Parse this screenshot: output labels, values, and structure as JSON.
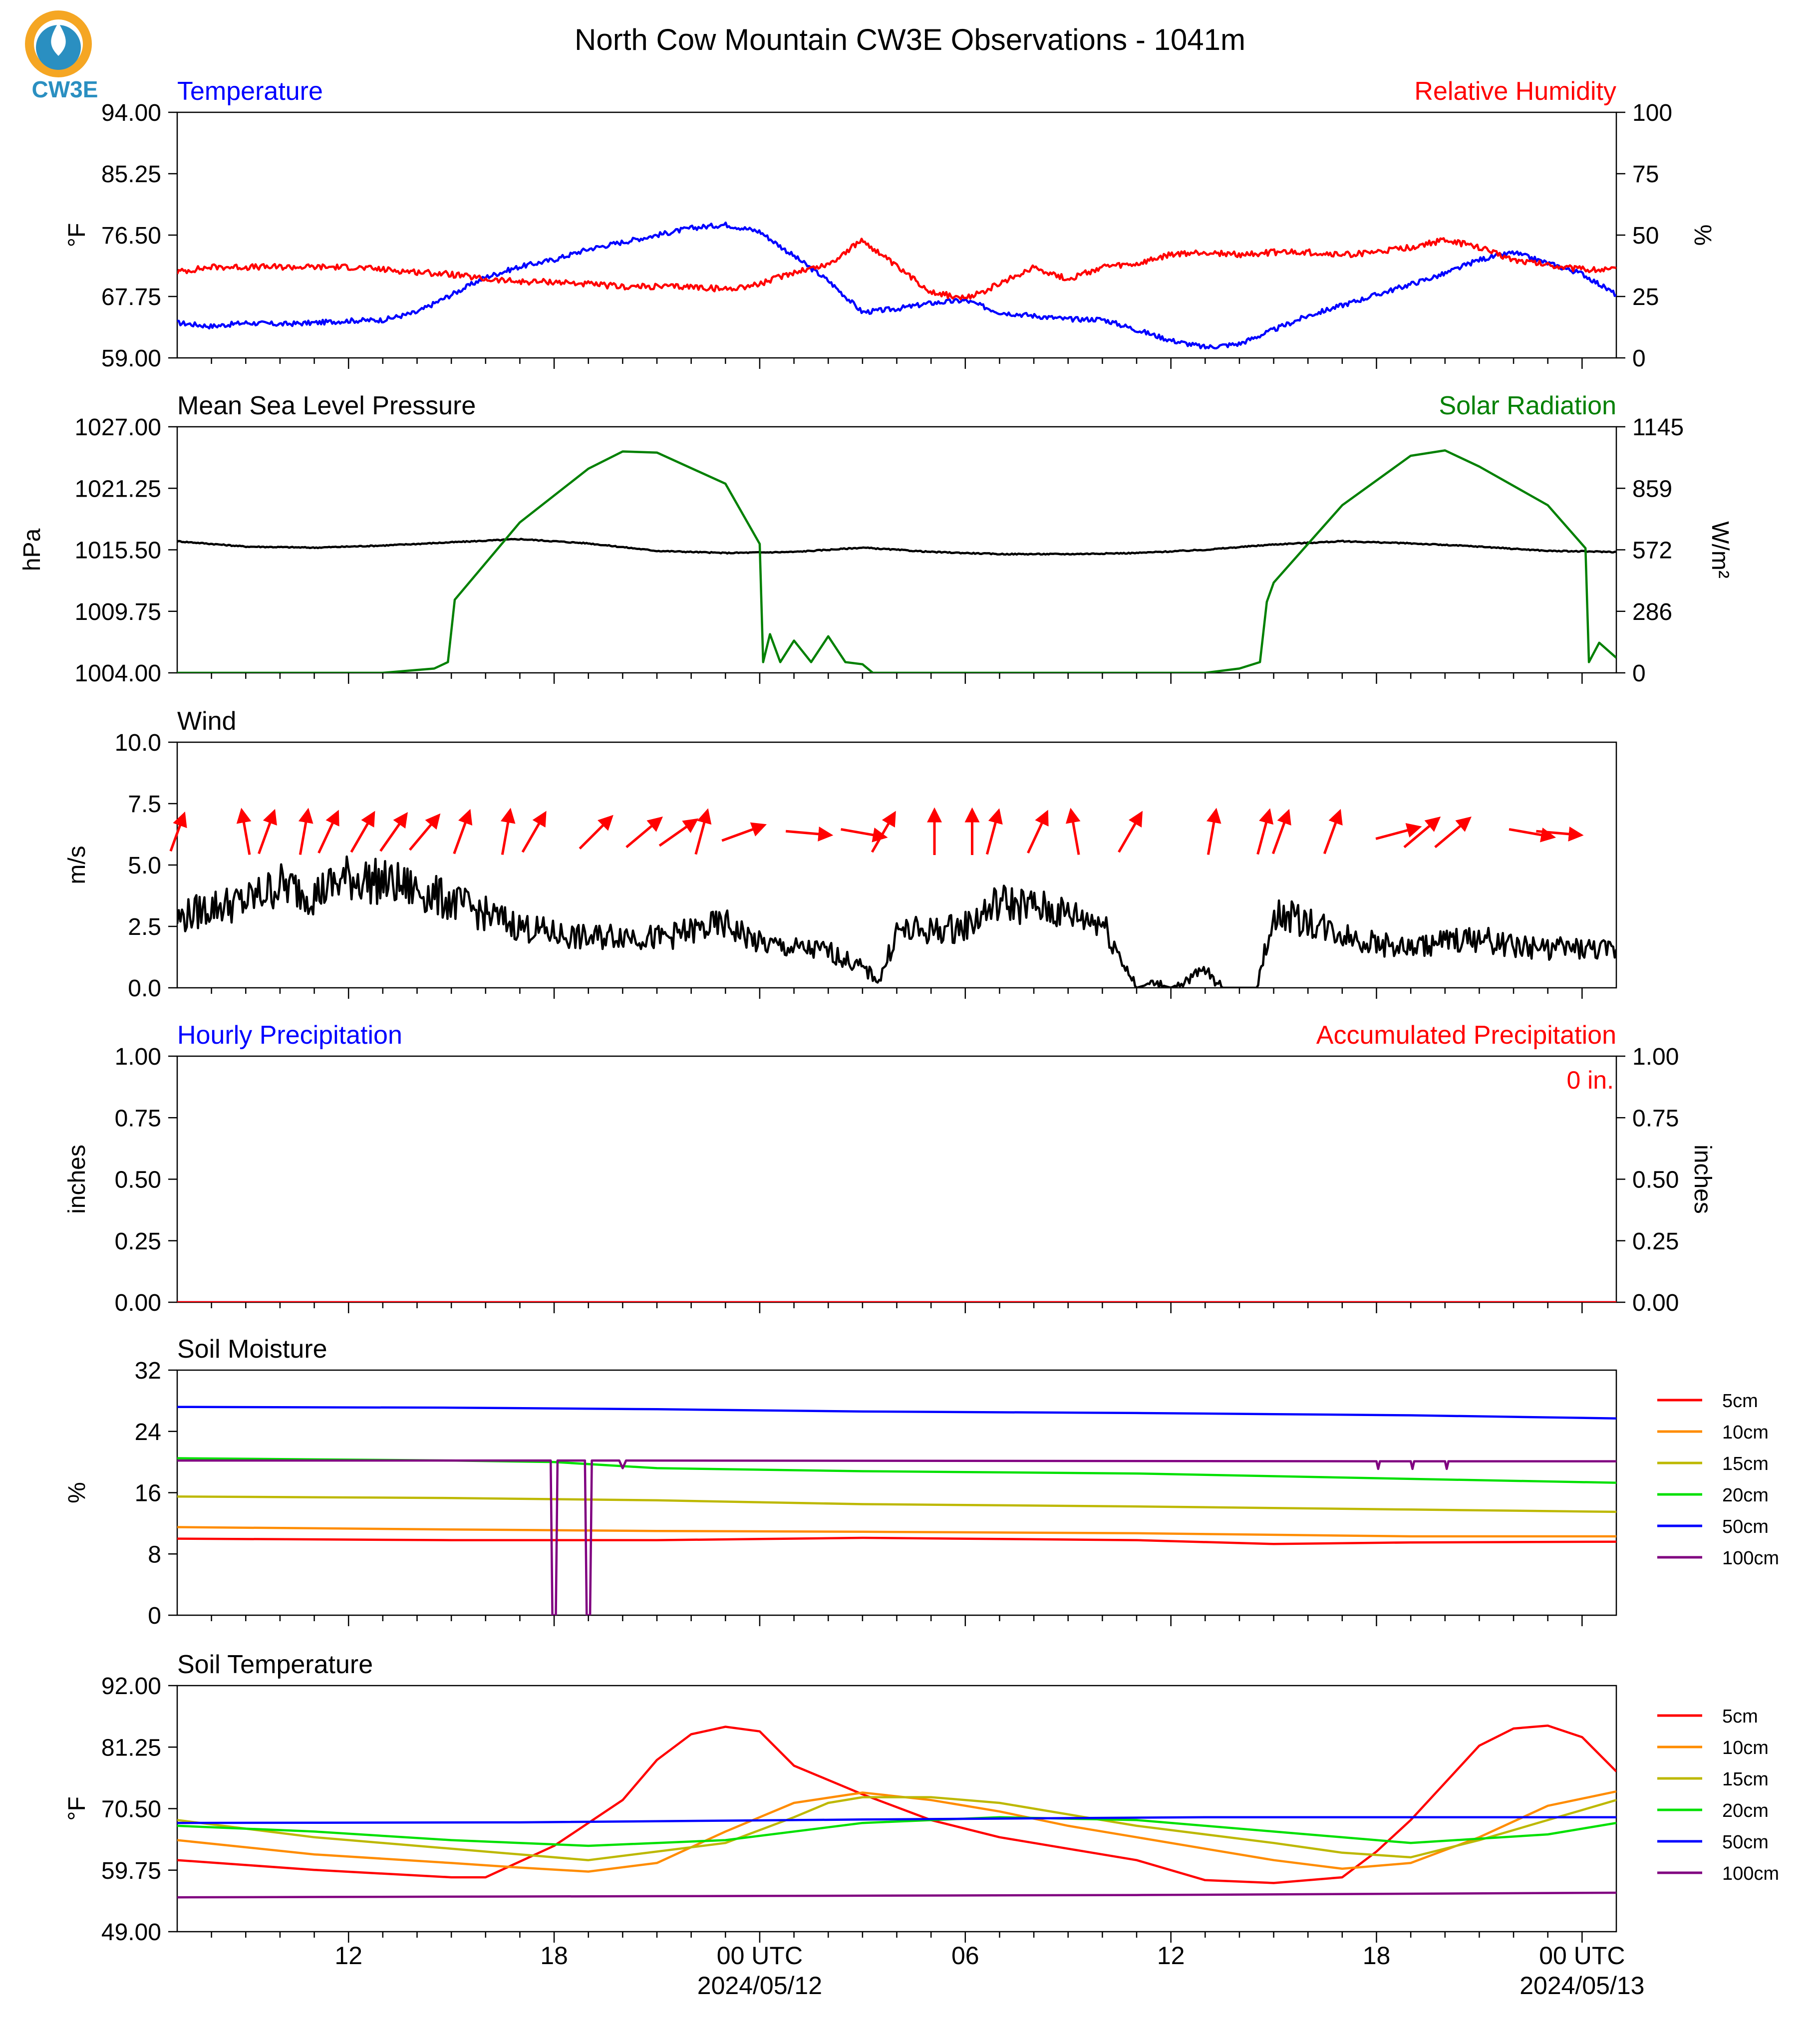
{
  "title": "North Cow Mountain CW3E Observations - 1041m",
  "logo": {
    "text": "CW3E",
    "colors": {
      "ring": "#f5a623",
      "drop": "#2a8fc1",
      "text": "#2a8fc1"
    }
  },
  "chart_data": [
    {
      "id": "temp_rh",
      "type": "line",
      "left_title": "Temperature",
      "right_title": "Relative Humidity",
      "left_title_color": "#0000ff",
      "right_title_color": "#ff0000",
      "ylabel_left": "°F",
      "ylabel_right": "%",
      "ylim_left": [
        59,
        94
      ],
      "ylim_right": [
        0,
        100
      ],
      "yticks_left": [
        "59.00",
        "67.75",
        "76.50",
        "85.25",
        "94.00"
      ],
      "yticks_right": [
        "0",
        "25",
        "50",
        "75",
        "100"
      ],
      "series": [
        {
          "label": "Temperature",
          "axis": "left",
          "color": "#0000ff",
          "x": [
            0,
            1,
            2,
            3,
            4,
            5,
            6,
            7,
            8,
            9,
            10,
            11,
            12,
            13,
            14,
            15,
            16,
            17,
            18,
            19,
            20,
            21,
            22,
            23,
            24,
            25,
            26,
            27,
            28,
            29,
            30,
            31,
            32,
            33,
            34,
            35,
            36,
            37,
            38,
            39,
            40,
            41,
            42
          ],
          "y": [
            64.0,
            63.5,
            64.0,
            63.8,
            64.0,
            64.3,
            64.4,
            65.5,
            68.0,
            70.5,
            72.0,
            73.0,
            74.5,
            75.5,
            76.5,
            77.5,
            78.0,
            77.0,
            73.5,
            70.0,
            65.5,
            66.0,
            66.8,
            67.2,
            65.5,
            65.0,
            64.5,
            64.5,
            63.0,
            61.5,
            60.5,
            61.0,
            63.0,
            65.0,
            66.5,
            68.0,
            69.5,
            71.0,
            73.0,
            74.0,
            72.5,
            71.0,
            68.0
          ]
        },
        {
          "label": "Relative Humidity",
          "axis": "right",
          "color": "#ff0000",
          "x": [
            0,
            1,
            2,
            3,
            4,
            5,
            6,
            7,
            8,
            9,
            10,
            11,
            12,
            13,
            14,
            15,
            16,
            17,
            18,
            19,
            20,
            21,
            22,
            23,
            24,
            25,
            26,
            27,
            28,
            29,
            30,
            31,
            32,
            33,
            34,
            35,
            36,
            37,
            38,
            39,
            40,
            41,
            42
          ],
          "y": [
            35,
            37,
            37,
            37,
            37,
            37,
            36,
            35,
            34,
            32,
            31,
            31,
            30,
            29,
            29,
            29,
            28,
            30,
            35,
            38,
            48,
            37,
            27,
            24,
            30,
            37,
            32,
            37,
            38,
            42,
            43,
            42,
            43,
            43,
            42,
            43,
            45,
            48,
            45,
            40,
            38,
            36,
            36
          ]
        }
      ]
    },
    {
      "id": "pressure_solar",
      "type": "line",
      "left_title": "Mean Sea Level Pressure",
      "right_title": "Solar Radiation",
      "left_title_color": "#000000",
      "right_title_color": "#008000",
      "ylabel_left": "hPa",
      "ylabel_right": "W/m²",
      "ylim_left": [
        1004,
        1027
      ],
      "ylim_right": [
        0,
        1145
      ],
      "yticks_left": [
        "1004.00",
        "1009.75",
        "1015.50",
        "1021.25",
        "1027.00"
      ],
      "yticks_right": [
        "0",
        "286",
        "572",
        "859",
        "1145"
      ],
      "series": [
        {
          "label": "Mean Sea Level Pressure",
          "axis": "left",
          "color": "#000000",
          "x": [
            0,
            2,
            4,
            6,
            8,
            10,
            12,
            14,
            16,
            18,
            20,
            22,
            24,
            26,
            28,
            30,
            32,
            34,
            36,
            38,
            40,
            42
          ],
          "y": [
            1016.3,
            1015.8,
            1015.7,
            1015.9,
            1016.2,
            1016.5,
            1016.1,
            1015.4,
            1015.2,
            1015.3,
            1015.7,
            1015.3,
            1015.1,
            1015.1,
            1015.2,
            1015.5,
            1016.0,
            1016.3,
            1016.1,
            1015.8,
            1015.4,
            1015.3
          ]
        },
        {
          "label": "Solar Radiation",
          "axis": "right",
          "color": "#008000",
          "x": [
            0,
            6,
            7.5,
            7.9,
            8.1,
            10,
            12,
            13,
            14,
            16,
            17,
            17.1,
            17.3,
            17.6,
            18,
            18.5,
            19,
            19.5,
            20,
            20.3,
            21,
            24,
            30,
            31,
            31.6,
            31.8,
            32,
            34,
            36,
            37,
            38,
            40,
            41.1,
            41.2,
            41.5,
            42
          ],
          "y": [
            0,
            0,
            20,
            50,
            340,
            700,
            950,
            1030,
            1025,
            880,
            600,
            50,
            180,
            50,
            150,
            50,
            170,
            50,
            40,
            0,
            0,
            0,
            0,
            20,
            50,
            330,
            420,
            780,
            1010,
            1035,
            960,
            780,
            580,
            50,
            140,
            70
          ]
        }
      ]
    },
    {
      "id": "wind",
      "type": "line",
      "left_title": "Wind",
      "right_title": "",
      "left_title_color": "#000000",
      "ylabel_left": "m/s",
      "ylim_left": [
        0,
        10
      ],
      "yticks_left": [
        "0.0",
        "2.5",
        "5.0",
        "7.5",
        "10.0"
      ],
      "series": [
        {
          "label": "Wind speed",
          "axis": "left",
          "color": "#000000",
          "x": [
            0,
            1,
            2,
            3,
            4,
            5,
            6,
            7,
            8,
            9,
            10,
            11,
            12,
            13,
            14,
            15,
            16,
            17,
            18,
            19,
            20,
            20.5,
            21,
            22,
            23,
            24,
            25,
            26,
            27,
            28,
            28.5,
            29,
            30,
            30.5,
            31,
            31.5,
            32,
            33,
            34,
            35,
            36,
            37,
            38,
            39,
            40,
            41,
            42
          ],
          "y": [
            2.8,
            3.3,
            3.5,
            4.2,
            3.8,
            4.5,
            4.3,
            4.0,
            3.5,
            3.0,
            2.5,
            2.2,
            2.0,
            2.2,
            2.0,
            2.3,
            2.6,
            1.8,
            1.6,
            1.5,
            0.8,
            0.3,
            2.3,
            2.3,
            2.5,
            3.5,
            3.3,
            3.0,
            2.7,
            0.0,
            0.2,
            0.0,
            0.7,
            0.0,
            0.0,
            0.0,
            3.0,
            2.7,
            2.2,
            1.8,
            1.6,
            1.9,
            2.0,
            1.7,
            1.6,
            1.6,
            1.5
          ]
        }
      ],
      "barbs": {
        "color": "#ff0000",
        "x": [
          0,
          2,
          2.6,
          3.7,
          4.4,
          5.4,
          6.3,
          7.2,
          8.3,
          9.6,
          10.4,
          12.2,
          13.6,
          14.6,
          15.3,
          16.5,
          18.4,
          20.0,
          20.6,
          22.1,
          23.2,
          23.8,
          25.1,
          26.2,
          27.8,
          30.2,
          31.7,
          32.2,
          33.7,
          35.6,
          36.3,
          37.2,
          39.5,
          40.3
        ],
        "dir": [
          200,
          170,
          200,
          190,
          205,
          210,
          215,
          220,
          200,
          190,
          210,
          225,
          230,
          235,
          195,
          250,
          275,
          280,
          210,
          180,
          180,
          195,
          205,
          170,
          210,
          190,
          195,
          200,
          200,
          255,
          230,
          230,
          280,
          275
        ],
        "len": [
          0.7,
          0.8,
          0.8,
          0.8,
          0.8,
          0.8,
          0.8,
          0.8,
          0.8,
          0.8,
          0.8,
          0.8,
          0.8,
          0.8,
          0.8,
          0.8,
          0.8,
          0.8,
          0.8,
          0.8,
          0.8,
          0.8,
          0.8,
          0.8,
          0.8,
          0.8,
          0.8,
          0.8,
          0.8,
          0.8,
          0.8,
          0.8,
          0.8,
          0.8
        ]
      }
    },
    {
      "id": "precip",
      "type": "line",
      "left_title": "Hourly Precipitation",
      "right_title": "Accumulated Precipitation",
      "left_title_color": "#0000ff",
      "right_title_color": "#ff0000",
      "ylabel_left": "inches",
      "ylabel_right": "inches",
      "ylim_left": [
        0,
        1
      ],
      "ylim_right": [
        0,
        1
      ],
      "yticks_left": [
        "0.00",
        "0.25",
        "0.50",
        "0.75",
        "1.00"
      ],
      "yticks_right": [
        "0.00",
        "0.25",
        "0.50",
        "0.75",
        "1.00"
      ],
      "annotation": "0 in.",
      "series": [
        {
          "label": "Hourly Precipitation",
          "axis": "left",
          "color": "#0000ff",
          "x": [
            0,
            42
          ],
          "y": [
            0,
            0
          ]
        },
        {
          "label": "Accumulated Precipitation",
          "axis": "right",
          "color": "#ff0000",
          "x": [
            0,
            42
          ],
          "y": [
            0,
            0
          ]
        }
      ]
    },
    {
      "id": "soil_moisture",
      "type": "line",
      "left_title": "Soil Moisture",
      "right_title": "",
      "left_title_color": "#000000",
      "ylabel_left": "%",
      "ylim_left": [
        0,
        32
      ],
      "yticks_left": [
        "0",
        "8",
        "16",
        "24",
        "32"
      ],
      "legend": "right",
      "series": [
        {
          "label": "5cm",
          "color": "#ff0000",
          "x": [
            0,
            8,
            14,
            20,
            28,
            32,
            36,
            42
          ],
          "y": [
            10.0,
            9.8,
            9.8,
            10.1,
            9.8,
            9.3,
            9.5,
            9.6
          ]
        },
        {
          "label": "10cm",
          "color": "#ff8c00",
          "x": [
            0,
            8,
            14,
            20,
            28,
            36,
            42
          ],
          "y": [
            11.5,
            11.2,
            11.0,
            10.9,
            10.7,
            10.3,
            10.3
          ]
        },
        {
          "label": "15cm",
          "color": "#bdb800",
          "x": [
            0,
            8,
            14,
            20,
            28,
            36,
            42
          ],
          "y": [
            15.5,
            15.3,
            15.0,
            14.5,
            14.2,
            13.8,
            13.5
          ]
        },
        {
          "label": "20cm",
          "color": "#00e000",
          "x": [
            0,
            8,
            11,
            14,
            20,
            28,
            36,
            42
          ],
          "y": [
            20.5,
            20.2,
            20.0,
            19.2,
            18.8,
            18.5,
            17.8,
            17.3
          ]
        },
        {
          "label": "50cm",
          "color": "#0000ff",
          "x": [
            0,
            8,
            14,
            20,
            28,
            36,
            42
          ],
          "y": [
            27.2,
            27.1,
            26.9,
            26.6,
            26.4,
            26.1,
            25.7
          ]
        },
        {
          "label": "100cm",
          "color": "#800080",
          "x": [
            0,
            10.9,
            10.95,
            11.05,
            11.1,
            11.9,
            11.95,
            12.05,
            12.1,
            12.9,
            13.0,
            13.1,
            35.0,
            35.05,
            35.1,
            36.0,
            36.05,
            36.1,
            37.0,
            37.05,
            37.1,
            42
          ],
          "y": [
            20.2,
            20.2,
            0,
            0,
            20.2,
            20.2,
            0,
            0,
            20.2,
            20.2,
            19.2,
            20.2,
            20.1,
            19.1,
            20.1,
            20.1,
            19.1,
            20.1,
            20.1,
            19.1,
            20.1,
            20.1
          ]
        }
      ]
    },
    {
      "id": "soil_temperature",
      "type": "line",
      "left_title": "Soil Temperature",
      "right_title": "",
      "left_title_color": "#000000",
      "ylabel_left": "°F",
      "ylim_left": [
        49,
        92
      ],
      "yticks_left": [
        "49.00",
        "59.75",
        "70.50",
        "81.25",
        "92.00"
      ],
      "legend": "right",
      "series": [
        {
          "label": "5cm",
          "color": "#ff0000",
          "x": [
            0,
            4,
            8,
            9,
            11,
            13,
            14,
            15,
            16,
            17,
            18,
            20,
            22,
            24,
            26,
            28,
            30,
            32,
            34,
            35,
            36,
            37,
            38,
            39,
            40,
            41,
            42
          ],
          "y": [
            61.5,
            59.8,
            58.5,
            58.5,
            64.0,
            72.0,
            79.0,
            83.5,
            84.8,
            84.0,
            78.0,
            73.0,
            68.5,
            65.5,
            63.5,
            61.5,
            58.0,
            57.5,
            58.5,
            63.0,
            68.5,
            75.0,
            81.5,
            84.5,
            85.0,
            83.0,
            77.0
          ]
        },
        {
          "label": "10cm",
          "color": "#ff8c00",
          "x": [
            0,
            4,
            8,
            10,
            12,
            14,
            16,
            18,
            20,
            22,
            24,
            26,
            28,
            30,
            32,
            34,
            36,
            38,
            40,
            42
          ],
          "y": [
            65.0,
            62.5,
            61.0,
            60.2,
            59.5,
            61.0,
            66.5,
            71.5,
            73.3,
            72.0,
            70.0,
            67.5,
            65.5,
            63.5,
            61.5,
            60.0,
            61.0,
            65.5,
            71.0,
            73.5
          ]
        },
        {
          "label": "15cm",
          "color": "#bdb800",
          "x": [
            0,
            4,
            8,
            12,
            16,
            18,
            19,
            20,
            22,
            24,
            26,
            28,
            30,
            32,
            34,
            36,
            38,
            40,
            42
          ],
          "y": [
            68.5,
            65.5,
            63.5,
            61.5,
            64.5,
            69.0,
            71.5,
            72.5,
            72.5,
            71.5,
            69.5,
            67.5,
            66.0,
            64.5,
            62.8,
            62.0,
            65.0,
            68.5,
            72.0
          ]
        },
        {
          "label": "20cm",
          "color": "#00e000",
          "x": [
            0,
            4,
            8,
            12,
            16,
            20,
            24,
            28,
            32,
            36,
            40,
            42
          ],
          "y": [
            67.5,
            66.5,
            65.0,
            64.0,
            65.0,
            68.0,
            69.0,
            68.5,
            66.5,
            64.5,
            66.0,
            68.0
          ]
        },
        {
          "label": "50cm",
          "color": "#0000ff",
          "x": [
            0,
            10,
            20,
            30,
            42
          ],
          "y": [
            68.0,
            68.1,
            68.6,
            69.0,
            69.0
          ]
        },
        {
          "label": "100cm",
          "color": "#800080",
          "x": [
            0,
            14,
            28,
            42
          ],
          "y": [
            55.0,
            55.2,
            55.4,
            55.8
          ]
        }
      ]
    }
  ],
  "x_axis": {
    "range_hours": [
      0,
      42
    ],
    "major_ticks": [
      {
        "h": 5,
        "label": "12"
      },
      {
        "h": 11,
        "label": "18"
      },
      {
        "h": 17,
        "label": "00 UTC",
        "date": "2024/05/12"
      },
      {
        "h": 23,
        "label": "06"
      },
      {
        "h": 29,
        "label": "12"
      },
      {
        "h": 35,
        "label": "18"
      },
      {
        "h": 41,
        "label": "00 UTC",
        "date": "2024/05/13"
      }
    ]
  }
}
